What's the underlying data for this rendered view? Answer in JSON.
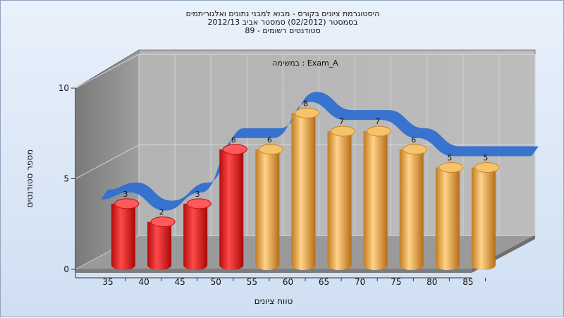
{
  "chart_data": {
    "type": "bar",
    "title_lines": [
      "היסטוגרמת ציונים בקורס - מבוא למבני נתונים ואלגוריתמים",
      "בסמסטר  (02/2012)  סמסטר אביב 2012/13",
      "סטודנטים רשומים - 89"
    ],
    "annotation": "במשימה : Exam_A",
    "xlabel": "טווח ציונים",
    "ylabel": "מספר סטודנטים",
    "categories": [
      "35",
      "40",
      "45",
      "50",
      "55",
      "60",
      "65",
      "70",
      "75",
      "80",
      "85"
    ],
    "values": [
      3,
      2,
      3,
      6,
      6,
      8,
      7,
      7,
      6,
      5,
      5
    ],
    "bar_colors": [
      "#e02020",
      "#e02020",
      "#e02020",
      "#e02020",
      "#f0a83c",
      "#f0a83c",
      "#f0a83c",
      "#f0a83c",
      "#f0a83c",
      "#f0a83c",
      "#f0a83c"
    ],
    "y_ticks": [
      0,
      5,
      10
    ],
    "ylim": [
      0,
      10
    ],
    "curve_color": "#2f6fd0",
    "grid": true
  }
}
